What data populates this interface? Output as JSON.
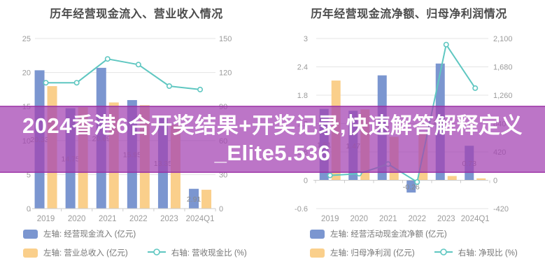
{
  "banner": {
    "line1": "2024香港6合开奖结果+开奖记录,快速解答解释定义",
    "line2": "_Elite5.536",
    "bg_color": "#A342B2",
    "text_color": "#FFFFFF"
  },
  "colors": {
    "bar_blue": "#7B96D0",
    "bar_orange": "#FACF8B",
    "line_teal": "#5FC7C1",
    "grid": "#E4E4E4",
    "axis_line": "#CBCBCB",
    "axis_label": "#9B9B9B",
    "title": "#4A4A4A",
    "data_label": "#8A8A8A",
    "legend_text": "#757575"
  },
  "chart_data": [
    {
      "type": "bar",
      "title": "历年经营现金流入、营业收入情况",
      "categories": [
        "2019",
        "2020",
        "2021",
        "2022",
        "2023",
        "2024Q1"
      ],
      "series": [
        {
          "name": "左轴: 经营现金流入 (亿元)",
          "kind": "bar",
          "axis": "left",
          "color": "#7B96D0",
          "values": [
            20.33,
            14.75,
            20.69,
            15.95,
            13.35,
            2.91
          ],
          "labels": [
            "20.33",
            "14.75",
            "20.69",
            "15.95",
            "13.35",
            "2.91"
          ]
        },
        {
          "name": "左轴: 营业总收入 (亿元)",
          "kind": "bar",
          "axis": "left",
          "color": "#FACF8B",
          "values": [
            18.0,
            14.9,
            15.6,
            15.2,
            12.3,
            2.77
          ],
          "labels": null
        },
        {
          "name": "右轴: 营收现金比 (%)",
          "kind": "line",
          "axis": "right",
          "color": "#5FC7C1",
          "values": [
            111,
            111,
            132,
            127,
            108,
            105
          ],
          "labels": null
        }
      ],
      "left_axis": {
        "min": 0,
        "max": 25,
        "ticks": [
          0,
          5,
          10,
          15,
          20,
          25
        ],
        "tick_labels": [
          "0",
          "5",
          "10",
          "15",
          "20",
          "25"
        ]
      },
      "right_axis": {
        "min": 0,
        "max": 150,
        "tick_labels": [
          "0",
          "30",
          "60",
          "90",
          "120",
          "150"
        ]
      },
      "x_axis_at": 0,
      "grid": true,
      "legend_position": "bottom-left"
    },
    {
      "type": "bar",
      "title": "历年经营现金流净额、归母净利润情况",
      "categories": [
        "2019",
        "2020",
        "2021",
        "2022",
        "2023",
        "2024Q1"
      ],
      "series": [
        {
          "name": "左轴: 经营活动现金流净额 (亿元)",
          "kind": "bar",
          "axis": "left",
          "color": "#7B96D0",
          "values": [
            1.51,
            1.47,
            2.22,
            -0.26,
            2.47,
            0.73
          ],
          "labels": [
            "1.51",
            "1.47",
            "2.22",
            "-0.26",
            "2.47",
            "0.73"
          ]
        },
        {
          "name": "左轴: 归母净利润 (亿元)",
          "kind": "bar",
          "axis": "left",
          "color": "#FACF8B",
          "values": [
            2.11,
            1.5,
            0.92,
            1.0,
            0.09,
            0.04
          ],
          "labels": null
        },
        {
          "name": "右轴: 净现比 (%)",
          "kind": "line",
          "axis": "right",
          "color": "#5FC7C1",
          "values": [
            72,
            98,
            240,
            -26,
            2010,
            1365
          ],
          "labels": null
        }
      ],
      "left_axis": {
        "min": -0.6,
        "max": 3,
        "ticks": [
          -0.6,
          0,
          0.6,
          1.2,
          1.8,
          2.4,
          3
        ],
        "tick_labels": [
          "-0.6",
          "0",
          "0.6",
          "1.2",
          "1.8",
          "2.4",
          "3"
        ]
      },
      "right_axis": {
        "min": -420,
        "max": 2100,
        "tick_labels": [
          "-420",
          "0",
          "420",
          "840",
          "1,260",
          "1,680",
          "2,100"
        ]
      },
      "x_axis_at": 0,
      "grid": true,
      "legend_position": "bottom-left"
    }
  ]
}
